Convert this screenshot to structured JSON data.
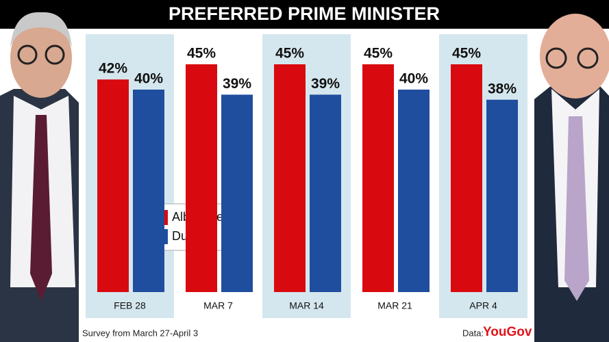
{
  "chart_data": {
    "type": "bar",
    "title": "PREFERRED PRIME MINISTER",
    "categories": [
      "FEB 28",
      "MAR 7",
      "MAR 14",
      "MAR 21",
      "APR 4"
    ],
    "series": [
      {
        "name": "Albanese",
        "color": "#d90a0f",
        "values": [
          42,
          45,
          45,
          45,
          45
        ],
        "value_labels": [
          "42%",
          "45%",
          "45%",
          "45%",
          "45%"
        ]
      },
      {
        "name": "Dutton",
        "color": "#1f4e9e",
        "values": [
          40,
          39,
          39,
          40,
          38
        ],
        "value_labels": [
          "40%",
          "39%",
          "39%",
          "40%",
          "38%"
        ]
      }
    ],
    "band_color": "#d5e7ee",
    "footnote": "Survey from March 27-April 3",
    "source_label": "Data:",
    "source": "YouGov"
  }
}
